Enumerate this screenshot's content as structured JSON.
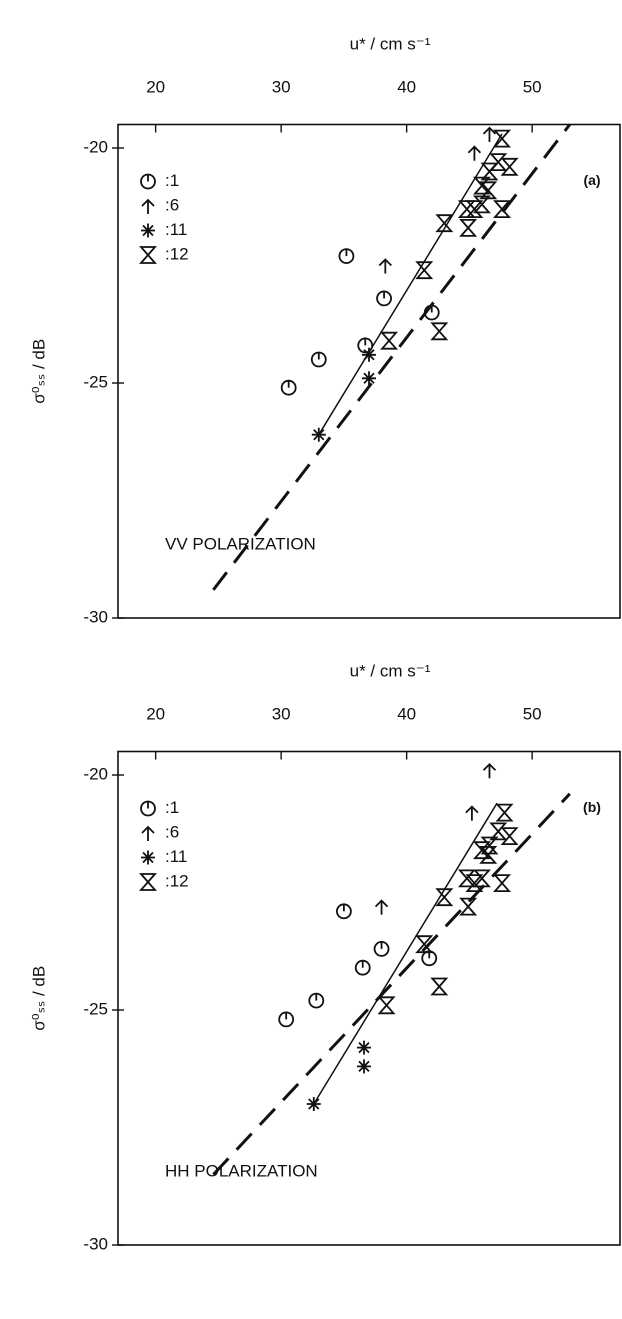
{
  "chart_data": [
    {
      "type": "scatter",
      "xlabel": "u* / cm s⁻¹",
      "ylabel": "σ⁰ₛₛ / dB",
      "annotations": [
        "(a)",
        "VV POLARIZATION"
      ],
      "xlim": [
        17,
        57
      ],
      "ylim": [
        -30,
        -19.5
      ],
      "xticks": [
        20,
        30,
        40,
        50
      ],
      "yticks": [
        -20,
        -25,
        -30
      ],
      "xaxis_side": "top",
      "series": [
        {
          "name": ":1",
          "marker": "circle",
          "color": "#111111",
          "x": [
            30.6,
            33.0,
            36.7,
            38.2,
            35.2,
            42.0
          ],
          "values": [
            -25.1,
            -24.5,
            -24.2,
            -23.2,
            -22.3,
            -23.5
          ]
        },
        {
          "name": ":6",
          "marker": "arrow",
          "color": "#111111",
          "x": [
            46.6,
            45.4,
            38.3
          ],
          "values": [
            -19.7,
            -20.1,
            -22.5
          ]
        },
        {
          "name": ":11",
          "marker": "asterisk",
          "color": "#111111",
          "x": [
            37.0,
            37.0,
            33.0
          ],
          "values": [
            -24.4,
            -24.9,
            -26.1
          ]
        },
        {
          "name": ":12",
          "marker": "hourglass",
          "color": "#111111",
          "x": [
            47.6,
            48.2,
            47.3,
            46.6,
            46.0,
            46.5,
            44.8,
            45.4,
            46.0,
            47.6,
            43.0,
            44.9,
            41.4,
            42.6,
            38.6
          ],
          "values": [
            -19.8,
            -20.4,
            -20.3,
            -20.5,
            -20.8,
            -20.9,
            -21.3,
            -21.3,
            -21.2,
            -21.3,
            -21.6,
            -21.7,
            -22.6,
            -23.9,
            -24.1
          ]
        }
      ],
      "lines": [
        {
          "style": "solid",
          "x": [
            33.0,
            47.6
          ],
          "values": [
            -26.1,
            -19.7
          ]
        },
        {
          "style": "dashed",
          "x": [
            24.6,
            53.0
          ],
          "values": [
            -29.4,
            -19.5
          ]
        }
      ]
    },
    {
      "type": "scatter",
      "xlabel": "u* / cm s⁻¹",
      "ylabel": "σ⁰ₛₛ / dB",
      "annotations": [
        "(b)",
        "HH POLARIZATION"
      ],
      "xlim": [
        17,
        57
      ],
      "ylim": [
        -30,
        -19.5
      ],
      "xticks": [
        20,
        30,
        40,
        50
      ],
      "yticks": [
        -20,
        -25,
        -30
      ],
      "xaxis_side": "top",
      "series": [
        {
          "name": ":1",
          "marker": "circle",
          "color": "#111111",
          "x": [
            30.4,
            32.8,
            36.5,
            38.0,
            35.0,
            41.8
          ],
          "values": [
            -25.2,
            -24.8,
            -24.1,
            -23.7,
            -22.9,
            -23.9
          ]
        },
        {
          "name": ":6",
          "marker": "arrow",
          "color": "#111111",
          "x": [
            46.6,
            45.2,
            38.0
          ],
          "values": [
            -19.9,
            -20.8,
            -22.8
          ]
        },
        {
          "name": ":11",
          "marker": "asterisk",
          "color": "#111111",
          "x": [
            36.6,
            36.6,
            32.6
          ],
          "values": [
            -25.8,
            -26.2,
            -27.0
          ]
        },
        {
          "name": ":12",
          "marker": "hourglass",
          "color": "#111111",
          "x": [
            47.8,
            48.2,
            47.3,
            46.6,
            46.0,
            46.5,
            44.8,
            45.4,
            46.0,
            47.6,
            43.0,
            44.9,
            41.4,
            42.6,
            38.4
          ],
          "values": [
            -20.8,
            -21.3,
            -21.2,
            -21.5,
            -21.6,
            -21.7,
            -22.2,
            -22.3,
            -22.2,
            -22.3,
            -22.6,
            -22.8,
            -23.6,
            -24.5,
            -24.9
          ]
        }
      ],
      "lines": [
        {
          "style": "solid",
          "x": [
            32.6,
            47.2
          ],
          "values": [
            -27.0,
            -20.6
          ]
        },
        {
          "style": "dashed",
          "x": [
            24.6,
            53.0
          ],
          "values": [
            -28.5,
            -20.4
          ]
        }
      ]
    }
  ]
}
